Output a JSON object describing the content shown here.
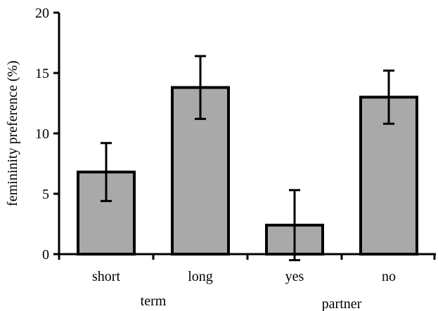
{
  "chart_data": {
    "type": "bar",
    "categories": [
      "short",
      "long",
      "yes",
      "no"
    ],
    "values": [
      6.8,
      13.8,
      2.4,
      13.0
    ],
    "error": [
      2.4,
      2.6,
      2.9,
      2.2
    ],
    "groups": [
      {
        "label": "term",
        "categories": [
          "short",
          "long"
        ]
      },
      {
        "label": "partner",
        "categories": [
          "yes",
          "no"
        ]
      }
    ],
    "title": "",
    "xlabel": "",
    "ylabel": "femininity preference (%)",
    "ylim": [
      0,
      20
    ],
    "yticks": [
      0,
      5,
      10,
      15,
      20
    ],
    "bar_color": "#a9a9a9",
    "edge_color": "#000000",
    "grid": false,
    "legend": "none"
  }
}
